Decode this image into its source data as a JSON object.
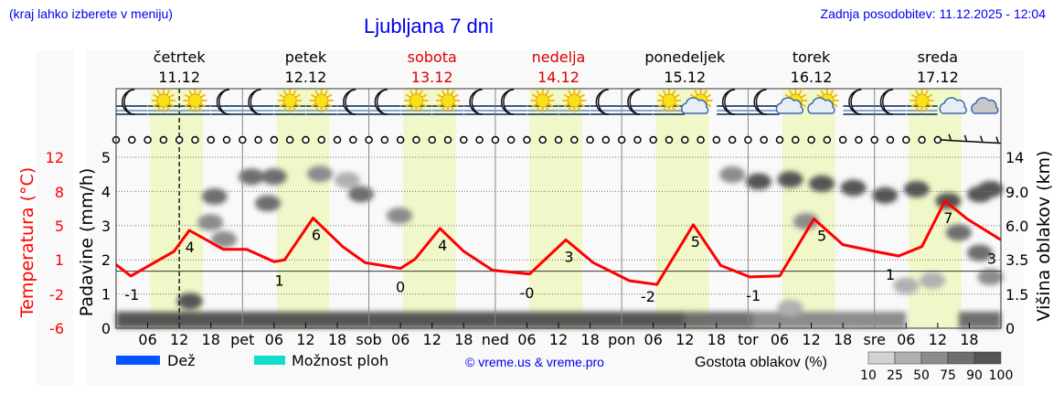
{
  "header": {
    "hint": "(kraj lahko izberete v meniju)",
    "title": "Ljubljana 7 dni",
    "updated": "Zadnja posodobitev: 11.12.2025 - 12:04"
  },
  "colors": {
    "temperature": "#ff0000",
    "weekend": "#dd0000",
    "link": "#0000ee",
    "daylight": "#f0f7c8",
    "rain": "#0055ff",
    "showers": "#11ddcc"
  },
  "chart_data": {
    "type": "line",
    "days": [
      {
        "name": "četrtek",
        "date": "11.12",
        "weekend": false,
        "abbr": ""
      },
      {
        "name": "petek",
        "date": "12.12",
        "weekend": false,
        "abbr": "pet"
      },
      {
        "name": "sobota",
        "date": "13.12",
        "weekend": true,
        "abbr": "sob"
      },
      {
        "name": "nedelja",
        "date": "14.12",
        "weekend": true,
        "abbr": "ned"
      },
      {
        "name": "ponedeljek",
        "date": "15.12",
        "weekend": false,
        "abbr": "pon"
      },
      {
        "name": "torek",
        "date": "16.12",
        "weekend": false,
        "abbr": "tor"
      },
      {
        "name": "sreda",
        "date": "17.12",
        "weekend": false,
        "abbr": "sre"
      }
    ],
    "hour_ticks": [
      "06",
      "12",
      "18"
    ],
    "current_hour": 12,
    "daylight_hours": [
      6.5,
      16.5
    ],
    "temperature": {
      "axis_label": "Temperatura (°C)",
      "tick_labels": [
        "12",
        "8",
        "5",
        "1",
        "-2",
        "-6"
      ],
      "ylim": [
        -6,
        12
      ],
      "hours": [
        0,
        2.8,
        11,
        13.9,
        17.8,
        20.4,
        24.8,
        30,
        32,
        37.4,
        43,
        47.3,
        54,
        56.8,
        61.5,
        66,
        71.5,
        78.5,
        85.4,
        90.6,
        97.5,
        102.7,
        109.6,
        114.8,
        120.3,
        126,
        132.5,
        138,
        144,
        148.6,
        153,
        157.4,
        161.6,
        168
      ],
      "values": [
        0.7,
        -0.5,
        2.1,
        4.3,
        3.1,
        2.3,
        2.3,
        1.0,
        1.2,
        5.6,
        2.6,
        0.9,
        0.3,
        1.3,
        4.5,
        2.1,
        0.1,
        -0.3,
        3.3,
        0.9,
        -1.0,
        -1.4,
        4.9,
        0.6,
        -0.6,
        -0.5,
        5.5,
        2.8,
        2.1,
        1.6,
        2.6,
        7.4,
        5.5,
        3.3
      ],
      "extreme_labels": [
        {
          "hour": 3,
          "value": "-1"
        },
        {
          "hour": 14,
          "value": "4"
        },
        {
          "hour": 31,
          "value": "1"
        },
        {
          "hour": 38,
          "value": "6"
        },
        {
          "hour": 54,
          "value": "0"
        },
        {
          "hour": 62,
          "value": "4"
        },
        {
          "hour": 78,
          "value": "-0"
        },
        {
          "hour": 86,
          "value": "3"
        },
        {
          "hour": 101,
          "value": "-2"
        },
        {
          "hour": 110,
          "value": "5"
        },
        {
          "hour": 121,
          "value": "-1"
        },
        {
          "hour": 134,
          "value": "5"
        },
        {
          "hour": 147,
          "value": "1"
        },
        {
          "hour": 158,
          "value": "7"
        },
        {
          "hour": 168,
          "value": "3"
        }
      ]
    },
    "precipitation": {
      "axis_label": "Padavine (mm/h)",
      "tick_labels": [
        "0",
        "1",
        "2",
        "3",
        "4",
        "5"
      ],
      "ylim": [
        0,
        5.5
      ],
      "values": []
    },
    "cloud_height": {
      "axis_label": "Višina oblakov (km)",
      "tick_labels": [
        "0",
        "1.5",
        "3.5",
        "6.0",
        "9.0",
        "14"
      ],
      "ticks": [
        0,
        1.5,
        3.5,
        6,
        9,
        14
      ],
      "blobs": [
        {
          "hour": 14,
          "km": 1.2,
          "density": 90
        },
        {
          "hour": 18.7,
          "km": 8.6,
          "density": 75
        },
        {
          "hour": 17.9,
          "km": 6.3,
          "density": 60
        },
        {
          "hour": 20.5,
          "km": 5.0,
          "density": 60
        },
        {
          "hour": 25.7,
          "km": 11.2,
          "density": 75
        },
        {
          "hour": 30,
          "km": 11.2,
          "density": 75
        },
        {
          "hour": 28.8,
          "km": 8,
          "density": 75
        },
        {
          "hour": 38.7,
          "km": 11.6,
          "density": 50
        },
        {
          "hour": 43.9,
          "km": 10.7,
          "density": 25
        },
        {
          "hour": 46.5,
          "km": 8.8,
          "density": 75
        },
        {
          "hour": 53.8,
          "km": 6.9,
          "density": 50
        },
        {
          "hour": 117,
          "km": 11.5,
          "density": 50
        },
        {
          "hour": 122,
          "km": 10.5,
          "density": 90
        },
        {
          "hour": 128,
          "km": 10.8,
          "density": 90
        },
        {
          "hour": 134,
          "km": 10.2,
          "density": 90
        },
        {
          "hour": 140,
          "km": 9.6,
          "density": 90
        },
        {
          "hour": 146,
          "km": 8.7,
          "density": 90
        },
        {
          "hour": 152,
          "km": 9.4,
          "density": 90
        },
        {
          "hour": 158,
          "km": 8.2,
          "density": 90
        },
        {
          "hour": 164,
          "km": 8.8,
          "density": 90
        },
        {
          "hour": 166,
          "km": 9.4,
          "density": 90
        },
        {
          "hour": 160,
          "km": 5.5,
          "density": 75
        },
        {
          "hour": 164,
          "km": 4,
          "density": 75
        },
        {
          "hour": 166,
          "km": 2.5,
          "density": 50
        },
        {
          "hour": 131,
          "km": 6.4,
          "density": 50
        },
        {
          "hour": 150,
          "km": 2,
          "density": 25
        },
        {
          "hour": 155,
          "km": 2.3,
          "density": 25
        },
        {
          "hour": 128,
          "km": 0.9,
          "density": 25
        }
      ],
      "low_band": [
        {
          "from": 0,
          "to": 108,
          "density": 90
        },
        {
          "from": 108,
          "to": 121,
          "density": 75
        },
        {
          "from": 121,
          "to": 140,
          "density": 50
        },
        {
          "from": 140,
          "to": 150,
          "density": 50
        },
        {
          "from": 160,
          "to": 168,
          "density": 75
        }
      ]
    },
    "icons": [
      "moon-fog",
      "sun-fog",
      "sun-fog",
      "moon-fog",
      "moon-fog",
      "sun-fog",
      "sun-fog",
      "moon-fog",
      "moon-fog",
      "sun-fog",
      "sun-fog",
      "moon-fog",
      "moon-fog",
      "sun-fog",
      "sun-fog",
      "moon-fog",
      "moon-fog",
      "sun-fog",
      "sun-cloud",
      "moon-fog",
      "moon-fog",
      "sun-cloud",
      "sun-cloud",
      "moon-fog",
      "moon-fog",
      "sun-fog",
      "cloud",
      "cloud-dark"
    ],
    "wind": {
      "calm_until_hour": 156,
      "barb_hours": [
        159,
        162,
        165,
        168
      ]
    }
  },
  "legend": {
    "rain": "Dež",
    "showers": "Možnost ploh",
    "credit": "© vreme.us & vreme.pro",
    "cloud_density_label": "Gostota oblakov (%)",
    "cloud_density_steps": [
      "10",
      "25",
      "50",
      "75",
      "90",
      "100"
    ],
    "cloud_density_colors": [
      "#d3d3d3",
      "#b0b0b0",
      "#8c8c8c",
      "#6e6e6e",
      "#555555"
    ]
  }
}
